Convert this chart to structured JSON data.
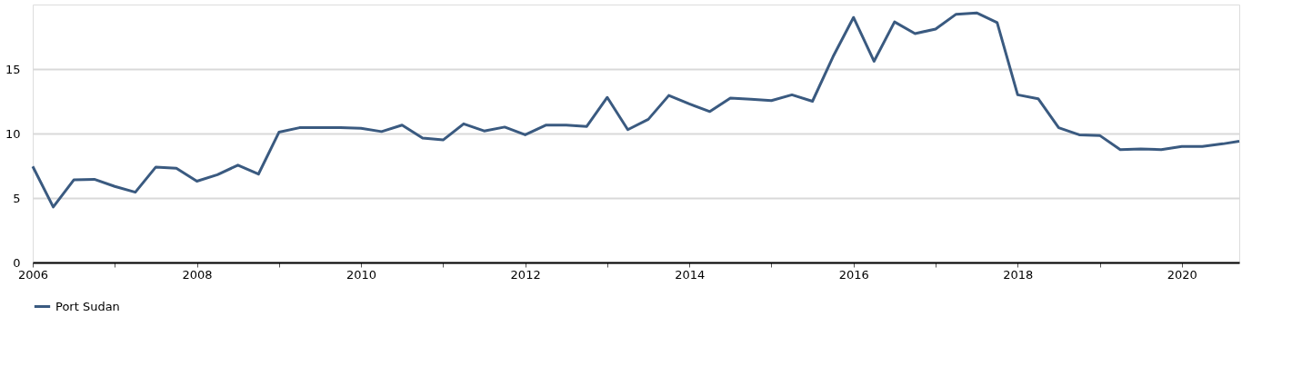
{
  "chart_data": {
    "type": "line",
    "x": [
      2006.0,
      2006.25,
      2006.5,
      2006.75,
      2007.0,
      2007.25,
      2007.5,
      2007.75,
      2008.0,
      2008.25,
      2008.5,
      2008.75,
      2009.0,
      2009.25,
      2009.5,
      2009.75,
      2010.0,
      2010.25,
      2010.5,
      2010.75,
      2011.0,
      2011.25,
      2011.5,
      2011.75,
      2012.0,
      2012.25,
      2012.5,
      2012.75,
      2013.0,
      2013.25,
      2013.5,
      2013.75,
      2014.0,
      2014.25,
      2014.5,
      2014.75,
      2015.0,
      2015.25,
      2015.5,
      2015.75,
      2016.0,
      2016.25,
      2016.5,
      2016.75,
      2017.0,
      2017.25,
      2017.5,
      2017.75,
      2018.0,
      2018.25,
      2018.5,
      2018.75,
      2019.0,
      2019.25,
      2019.5,
      2019.75,
      2020.0,
      2020.25,
      2020.5,
      2020.7
    ],
    "series": [
      {
        "name": "Port Sudan",
        "color": "#3a5a80",
        "values": [
          7.45,
          4.3,
          6.4,
          6.45,
          5.9,
          5.45,
          7.4,
          7.3,
          6.3,
          6.8,
          7.55,
          6.85,
          10.1,
          10.45,
          10.45,
          10.45,
          10.4,
          10.15,
          10.65,
          9.65,
          9.5,
          10.75,
          10.2,
          10.5,
          9.9,
          10.65,
          10.65,
          10.55,
          12.8,
          10.3,
          11.1,
          12.95,
          12.3,
          11.7,
          12.75,
          12.65,
          12.55,
          13.0,
          12.5,
          15.95,
          19.0,
          15.6,
          18.65,
          17.75,
          18.1,
          19.25,
          19.35,
          18.6,
          13.0,
          12.7,
          10.45,
          9.9,
          9.85,
          8.75,
          8.8,
          8.75,
          9.0,
          9.0,
          9.2,
          9.4
        ]
      }
    ],
    "xlim": [
      2006,
      2020.7
    ],
    "xticks": [
      2006,
      {
        "value": 2007,
        "label": null
      },
      2008,
      {
        "value": 2009,
        "label": null
      },
      2010,
      {
        "value": 2011,
        "label": null
      },
      2012,
      {
        "value": 2013,
        "label": null
      },
      2014,
      {
        "value": 2015,
        "label": null
      },
      2016,
      {
        "value": 2017,
        "label": null
      },
      2018,
      {
        "value": 2019,
        "label": null
      },
      2020
    ],
    "ylim": [
      0,
      20
    ],
    "yticks": [
      0,
      5,
      10,
      15
    ],
    "grid": "y",
    "legend": "bottom",
    "marker": "none",
    "line_style": "solid"
  }
}
